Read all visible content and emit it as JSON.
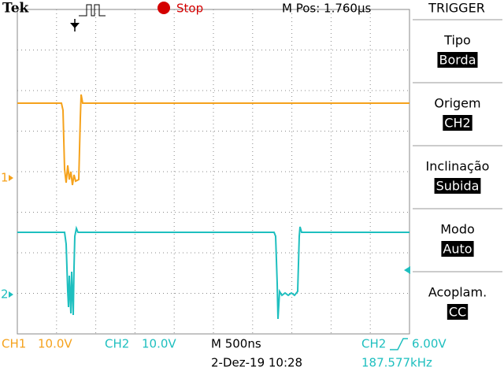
{
  "header": {
    "brand": "Tek",
    "status": "Stop",
    "position": "M Pos: 1.760μs"
  },
  "side_menu": {
    "title": "TRIGGER",
    "items": [
      {
        "label": "Tipo",
        "value": "Borda"
      },
      {
        "label": "Origem",
        "value": "CH2"
      },
      {
        "label": "Inclinação",
        "value": "Subida"
      },
      {
        "label": "Modo",
        "value": "Auto"
      },
      {
        "label": "Acoplam.",
        "value": "CC"
      }
    ]
  },
  "markers": {
    "ch1": "1",
    "ch2": "2"
  },
  "footer": {
    "ch1": "CH1",
    "ch1_scale": "10.0V",
    "ch2": "CH2",
    "ch2_scale": "10.0V",
    "timebase": "M 500ns",
    "datetime": "2-Dez-19 10:28",
    "trigger_source": "CH2",
    "trigger_level": "6.00V",
    "frequency": "187.577kHz"
  }
}
